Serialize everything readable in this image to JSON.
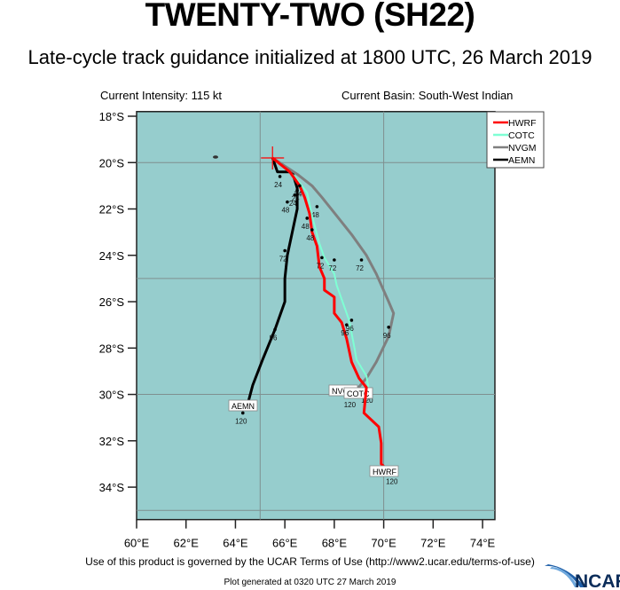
{
  "header": {
    "title": "TWENTY-TWO (SH22)",
    "subtitle": "Late-cycle track guidance initialized at 1800 UTC, 26 March 2019",
    "current_intensity": "Current Intensity: 115 kt",
    "current_basin": "Current Basin: South-West Indian"
  },
  "footer": {
    "terms": "Use of this product is governed by the UCAR Terms of Use (http://www2.ucar.edu/terms-of-use)",
    "generated": "Plot generated at 0320 UTC   27 March 2019",
    "logo": "NCAR"
  },
  "colors": {
    "ocean": "#96cdcd",
    "grid": "#7f8f8f",
    "HWRF": "#ff0000",
    "COTC": "#7fffd4",
    "NVGM": "#7f7f7f",
    "AEMN": "#000000"
  },
  "chart_data": {
    "type": "map-track",
    "title": "TWENTY-TWO (SH22)",
    "subtitle": "Late-cycle track guidance initialized at 1800 UTC, 26 March 2019",
    "xaxis": {
      "ticks": [
        "60°E",
        "62°E",
        "64°E",
        "66°E",
        "68°E",
        "70°E",
        "72°E",
        "74°E"
      ],
      "range": [
        60,
        75
      ]
    },
    "yaxis": {
      "ticks": [
        "18°S",
        "20°S",
        "22°S",
        "24°S",
        "26°S",
        "28°S",
        "30°S",
        "32°S",
        "34°S"
      ],
      "range": [
        -17.5,
        -35.5
      ]
    },
    "gridlines": {
      "lon": [
        65,
        70
      ],
      "lat": [
        -20,
        -25,
        -30,
        -35
      ]
    },
    "legend": [
      "HWRF",
      "COTC",
      "NVGM",
      "AEMN"
    ],
    "initial_position": {
      "lon": 65.5,
      "lat": -19.8
    },
    "series": [
      {
        "name": "HWRF",
        "points": [
          [
            65.5,
            -19.8
          ],
          [
            66.2,
            -20.4
          ],
          [
            66.6,
            -21.0
          ],
          [
            66.8,
            -21.5
          ],
          [
            67.0,
            -22.2
          ],
          [
            67.1,
            -23.0
          ],
          [
            67.3,
            -23.6
          ],
          [
            67.4,
            -24.5
          ],
          [
            67.6,
            -25.0
          ],
          [
            67.6,
            -25.5
          ],
          [
            68.0,
            -25.8
          ],
          [
            68.0,
            -26.5
          ],
          [
            68.3,
            -26.9
          ],
          [
            68.5,
            -27.6
          ],
          [
            68.7,
            -28.6
          ],
          [
            69.0,
            -29.3
          ],
          [
            69.3,
            -29.7
          ],
          [
            69.2,
            -30.8
          ],
          [
            69.8,
            -31.4
          ],
          [
            69.9,
            -32.1
          ],
          [
            69.9,
            -33.0
          ],
          [
            70.3,
            -33.4
          ]
        ],
        "labels": [
          {
            "t": "24",
            "lon": 66.6,
            "lat": -21.0
          },
          {
            "t": "48",
            "lon": 67.1,
            "lat": -22.9
          },
          {
            "t": "72",
            "lon": 67.5,
            "lat": -24.1
          },
          {
            "t": "96",
            "lon": 68.5,
            "lat": -27.0
          },
          {
            "t": "120",
            "lon": 70.4,
            "lat": -33.4
          }
        ],
        "box": "HWRF"
      },
      {
        "name": "COTC",
        "points": [
          [
            65.5,
            -19.8
          ],
          [
            66.4,
            -20.6
          ],
          [
            66.9,
            -21.3
          ],
          [
            67.1,
            -22.3
          ],
          [
            67.4,
            -23.5
          ],
          [
            67.6,
            -24.1
          ],
          [
            68.0,
            -24.8
          ],
          [
            68.1,
            -25.3
          ],
          [
            68.4,
            -26.2
          ],
          [
            68.6,
            -26.8
          ],
          [
            68.8,
            -27.9
          ],
          [
            68.9,
            -28.5
          ],
          [
            69.3,
            -29.2
          ],
          [
            69.4,
            -29.8
          ]
        ],
        "labels": [
          {
            "t": "24",
            "lon": 66.4,
            "lat": -21.4
          },
          {
            "t": "48",
            "lon": 66.9,
            "lat": -22.4
          },
          {
            "t": "72",
            "lon": 68.0,
            "lat": -24.2
          },
          {
            "t": "96",
            "lon": 68.7,
            "lat": -26.8
          },
          {
            "t": "120",
            "lon": 69.4,
            "lat": -29.9
          }
        ],
        "box": "COTC"
      },
      {
        "name": "NVGM",
        "points": [
          [
            65.5,
            -19.8
          ],
          [
            66.5,
            -20.5
          ],
          [
            67.1,
            -21.0
          ],
          [
            67.5,
            -21.5
          ],
          [
            68.1,
            -22.3
          ],
          [
            68.7,
            -23.1
          ],
          [
            69.3,
            -24.0
          ],
          [
            69.7,
            -24.8
          ],
          [
            70.2,
            -26.0
          ],
          [
            70.4,
            -26.5
          ],
          [
            70.2,
            -27.5
          ],
          [
            69.7,
            -28.6
          ],
          [
            69.3,
            -29.3
          ],
          [
            68.9,
            -29.8
          ]
        ],
        "labels": [
          {
            "t": "24",
            "lon": 66.5,
            "lat": -21.2
          },
          {
            "t": "48",
            "lon": 67.3,
            "lat": -21.9
          },
          {
            "t": "72",
            "lon": 69.1,
            "lat": -24.2
          },
          {
            "t": "96",
            "lon": 70.2,
            "lat": -27.1
          },
          {
            "t": "120",
            "lon": 68.7,
            "lat": -30.1
          }
        ],
        "box": "NVGM"
      },
      {
        "name": "AEMN",
        "points": [
          [
            65.5,
            -19.8
          ],
          [
            65.7,
            -20.4
          ],
          [
            66.3,
            -20.4
          ],
          [
            66.5,
            -21.1
          ],
          [
            66.5,
            -22.0
          ],
          [
            66.3,
            -23.0
          ],
          [
            66.1,
            -24.0
          ],
          [
            66.0,
            -25.0
          ],
          [
            66.0,
            -26.0
          ],
          [
            65.6,
            -27.2
          ],
          [
            65.1,
            -28.5
          ],
          [
            64.7,
            -29.6
          ],
          [
            64.5,
            -30.4
          ]
        ],
        "labels": [
          {
            "t": "24",
            "lon": 65.8,
            "lat": -20.6
          },
          {
            "t": "48",
            "lon": 66.1,
            "lat": -21.7
          },
          {
            "t": "72",
            "lon": 66.0,
            "lat": -23.8
          },
          {
            "t": "96",
            "lon": 65.6,
            "lat": -27.2
          },
          {
            "t": "120",
            "lon": 64.3,
            "lat": -30.8
          }
        ],
        "box": "AEMN"
      }
    ]
  }
}
